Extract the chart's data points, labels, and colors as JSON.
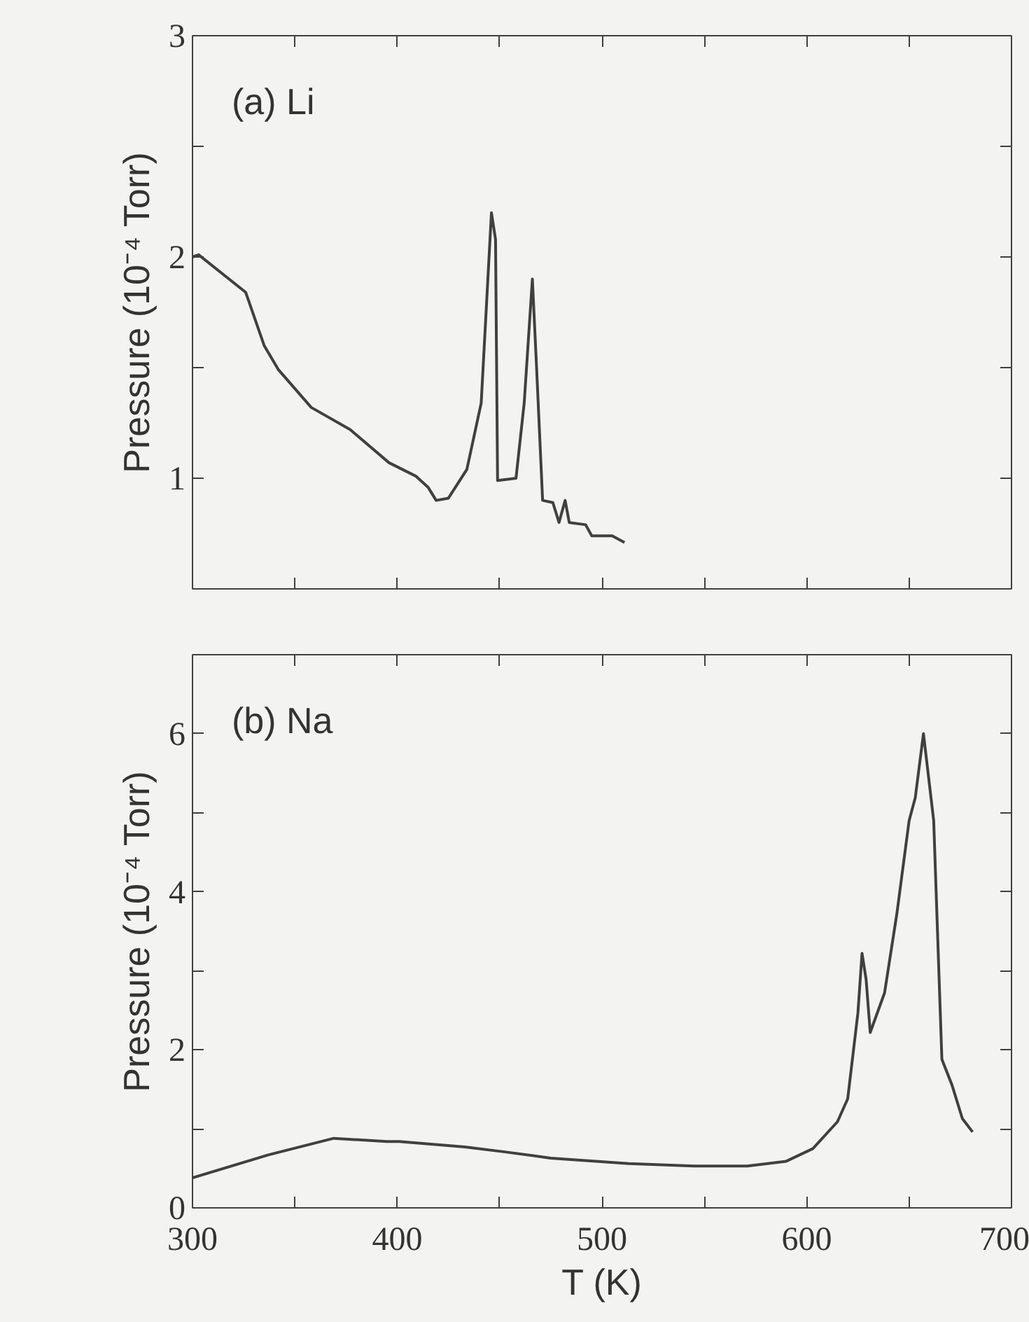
{
  "chart_data": [
    {
      "type": "line",
      "title": "(a) Li",
      "ylabel": "Pressure (10⁻⁴ Torr)",
      "xlim": [
        300,
        700
      ],
      "xticks": [
        {
          "value": 300,
          "label": null
        },
        {
          "value": 350,
          "label": null
        },
        {
          "value": 400,
          "label": null
        },
        {
          "value": 450,
          "label": null
        },
        {
          "value": 500,
          "label": null
        },
        {
          "value": 550,
          "label": null
        },
        {
          "value": 600,
          "label": null
        },
        {
          "value": 650,
          "label": null
        },
        {
          "value": 700,
          "label": null
        }
      ],
      "ylim": [
        0.5,
        3
      ],
      "yticks": [
        1,
        {
          "value": 1.5,
          "label": null
        },
        2,
        {
          "value": 2.5,
          "label": null
        },
        3
      ],
      "tick_labels": "y",
      "series": [
        {
          "color": "#404040",
          "x": [
            300,
            303,
            326,
            335,
            342,
            358,
            377,
            396,
            409,
            415,
            419,
            425,
            434,
            441,
            446,
            448,
            449,
            458,
            462,
            466,
            468,
            471,
            476,
            479,
            482,
            484,
            492,
            495,
            505,
            511
          ],
          "values": [
            2.0,
            2.01,
            1.84,
            1.6,
            1.49,
            1.32,
            1.22,
            1.07,
            1.01,
            0.96,
            0.9,
            0.91,
            1.04,
            1.34,
            2.2,
            2.08,
            0.99,
            1.0,
            1.34,
            1.9,
            1.51,
            0.9,
            0.89,
            0.8,
            0.9,
            0.8,
            0.79,
            0.74,
            0.74,
            0.71
          ]
        }
      ]
    },
    {
      "type": "line",
      "title": "(b) Na",
      "ylabel": "Pressure (10⁻⁴ Torr)",
      "xlabel": "T (K)",
      "xlim": [
        300,
        700
      ],
      "xticks": [
        300,
        {
          "value": 350,
          "label": null
        },
        400,
        {
          "value": 450,
          "label": null
        },
        500,
        {
          "value": 550,
          "label": null
        },
        600,
        {
          "value": 650,
          "label": null
        },
        700
      ],
      "ylim": [
        0,
        7
      ],
      "yticks": [
        0,
        {
          "value": 1,
          "label": null
        },
        2,
        {
          "value": 3,
          "label": null
        },
        4,
        {
          "value": 5,
          "label": null
        },
        6
      ],
      "series": [
        {
          "color": "#404040",
          "x": [
            300,
            337,
            369,
            395,
            401,
            433,
            452,
            475,
            513,
            545,
            571,
            590,
            603,
            615,
            620,
            625,
            627,
            629,
            631,
            638,
            644,
            650,
            653,
            657,
            662,
            666,
            671,
            676,
            681
          ],
          "values": [
            0.38,
            0.67,
            0.88,
            0.84,
            0.84,
            0.77,
            0.71,
            0.63,
            0.56,
            0.53,
            0.53,
            0.59,
            0.75,
            1.09,
            1.38,
            2.47,
            3.22,
            2.89,
            2.22,
            2.72,
            3.72,
            4.9,
            5.19,
            6.0,
            4.9,
            1.88,
            1.55,
            1.13,
            0.96
          ]
        }
      ]
    }
  ]
}
